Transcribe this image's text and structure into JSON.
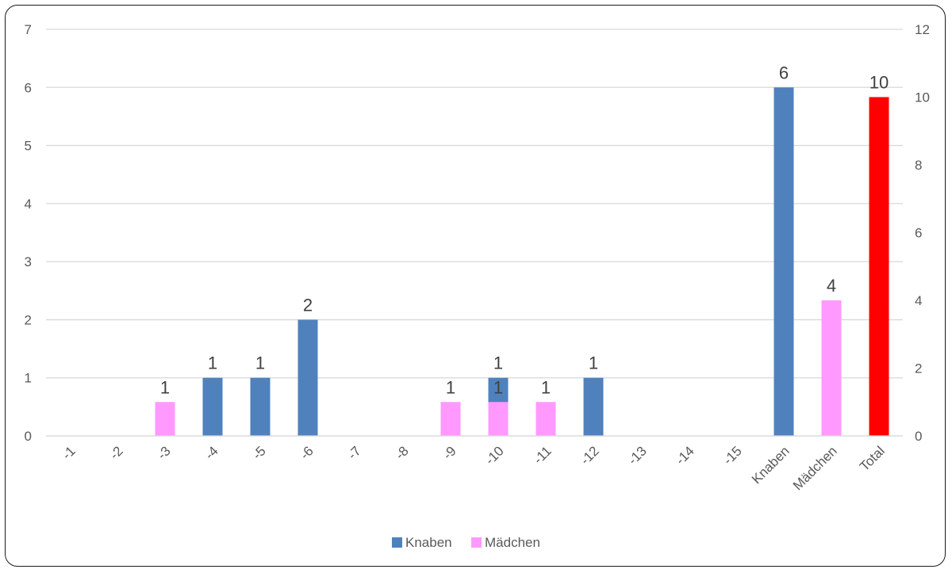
{
  "chart_data": {
    "type": "bar",
    "categories": [
      "-1",
      "-2",
      "-3",
      "-4",
      "-5",
      "-6",
      "-7",
      "-8",
      "-9",
      "-10",
      "-11",
      "-12",
      "-13",
      "-14",
      "-15",
      "Knaben",
      "Mädchen",
      "Total"
    ],
    "series": [
      {
        "name": "Knaben",
        "axis": "left",
        "color": "#4F81BD",
        "values": [
          null,
          null,
          null,
          1,
          1,
          2,
          null,
          null,
          null,
          1,
          null,
          1,
          null,
          null,
          null,
          6,
          null,
          null
        ],
        "labels": [
          "",
          "",
          "",
          "1",
          "1",
          "2",
          "",
          "",
          "",
          "1",
          "",
          "1",
          "",
          "",
          "",
          "6",
          "",
          ""
        ]
      },
      {
        "name": "Mädchen",
        "axis": "right",
        "color": "#FF99FF",
        "values": [
          null,
          null,
          1,
          null,
          null,
          null,
          null,
          null,
          1,
          1,
          1,
          null,
          null,
          null,
          null,
          null,
          4,
          null
        ],
        "labels": [
          "",
          "",
          "1",
          "",
          "",
          "",
          "",
          "",
          "1",
          "1",
          "1",
          "",
          "",
          "",
          "",
          "",
          "4",
          ""
        ]
      },
      {
        "name": "",
        "axis": "right",
        "color": "#FF0000",
        "legend": false,
        "values": [
          null,
          null,
          null,
          null,
          null,
          null,
          null,
          null,
          null,
          null,
          null,
          null,
          null,
          null,
          null,
          null,
          null,
          10
        ],
        "labels": [
          "",
          "",
          "",
          "",
          "",
          "",
          "",
          "",
          "",
          "",
          "",
          "",
          "",
          "",
          "",
          "",
          "",
          "10"
        ],
        "label_color": "#FF0000"
      }
    ],
    "y_left": {
      "ylim": [
        0,
        7
      ],
      "ticks": [
        "0",
        "1",
        "2",
        "3",
        "4",
        "5",
        "6",
        "7"
      ]
    },
    "y_right": {
      "ylim": [
        0,
        12
      ],
      "ticks": [
        "0",
        "2",
        "4",
        "6",
        "8",
        "10",
        "12"
      ]
    },
    "grid": true,
    "legend": {
      "position": "bottom",
      "entries": [
        "Knaben",
        "Mädchen"
      ]
    },
    "title": "",
    "xlabel": "",
    "ylabel": ""
  }
}
